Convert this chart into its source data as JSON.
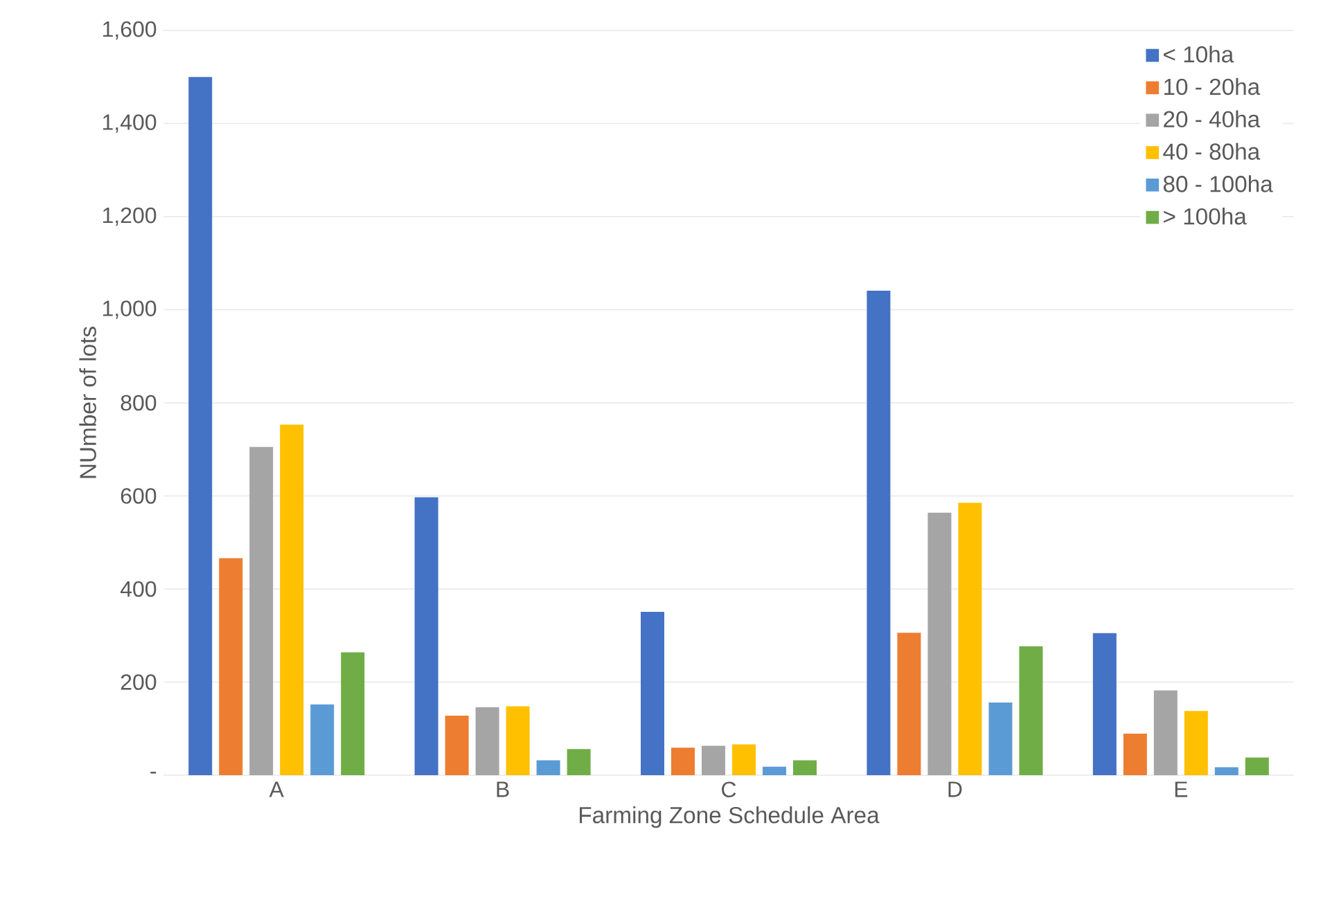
{
  "chart_data": {
    "type": "bar",
    "xlabel": "Farming Zone Schedule Area",
    "ylabel": "NUmber  of lots",
    "categories": [
      "A",
      "B",
      "C",
      "D",
      "E"
    ],
    "series": [
      {
        "name": "< 10ha",
        "color": "#4472c4",
        "values": [
          1500,
          597,
          351,
          1041,
          305
        ]
      },
      {
        "name": "10 - 20ha",
        "color": "#ed7d31",
        "values": [
          466,
          128,
          59,
          306,
          89
        ]
      },
      {
        "name": "20 - 40ha",
        "color": "#a5a5a5",
        "values": [
          705,
          146,
          63,
          564,
          182
        ]
      },
      {
        "name": "40 - 80ha",
        "color": "#ffc000",
        "values": [
          753,
          148,
          66,
          585,
          138
        ]
      },
      {
        "name": "80 - 100ha",
        "color": "#5b9bd5",
        "values": [
          152,
          32,
          18,
          156,
          17
        ]
      },
      {
        "name": "> 100ha",
        "color": "#70ad47",
        "values": [
          264,
          56,
          32,
          277,
          38
        ]
      }
    ],
    "ylim": [
      0,
      1600
    ],
    "yticks": [
      {
        "value": 0,
        "label": "-"
      },
      {
        "value": 200,
        "label": "200"
      },
      {
        "value": 400,
        "label": "400"
      },
      {
        "value": 600,
        "label": "600"
      },
      {
        "value": 800,
        "label": "800"
      },
      {
        "value": 1000,
        "label": "1,000"
      },
      {
        "value": 1200,
        "label": "1,200"
      },
      {
        "value": 1400,
        "label": "1,400"
      },
      {
        "value": 1600,
        "label": "1,600"
      }
    ],
    "grid": "y",
    "legend": "top right"
  }
}
